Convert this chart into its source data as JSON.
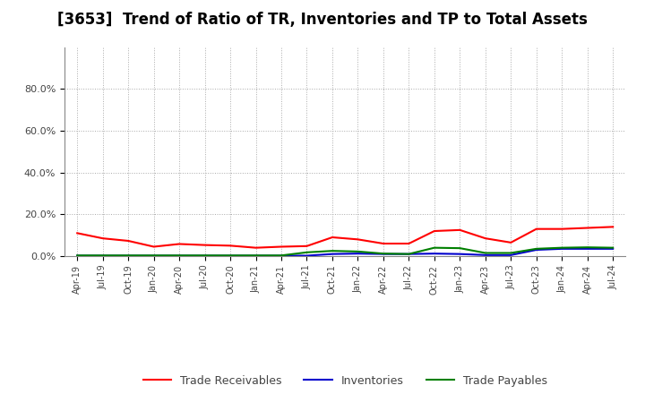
{
  "title": "[3653]  Trend of Ratio of TR, Inventories and TP to Total Assets",
  "title_fontsize": 12,
  "background_color": "#ffffff",
  "plot_bg_color": "#ffffff",
  "grid_color": "#aaaaaa",
  "dates": [
    "Apr-19",
    "Jul-19",
    "Oct-19",
    "Jan-20",
    "Apr-20",
    "Jul-20",
    "Oct-20",
    "Jan-21",
    "Apr-21",
    "Jul-21",
    "Oct-21",
    "Jan-22",
    "Apr-22",
    "Jul-22",
    "Oct-22",
    "Jan-23",
    "Apr-23",
    "Jul-23",
    "Oct-23",
    "Jan-24",
    "Apr-24",
    "Jul-24"
  ],
  "trade_receivables": [
    0.11,
    0.085,
    0.073,
    0.045,
    0.058,
    0.053,
    0.05,
    0.04,
    0.045,
    0.048,
    0.09,
    0.08,
    0.06,
    0.06,
    0.12,
    0.125,
    0.085,
    0.065,
    0.13,
    0.13,
    0.135,
    0.14
  ],
  "inventories": [
    0.002,
    0.002,
    0.002,
    0.002,
    0.002,
    0.002,
    0.002,
    0.002,
    0.002,
    0.002,
    0.01,
    0.012,
    0.01,
    0.01,
    0.012,
    0.01,
    0.005,
    0.005,
    0.03,
    0.035,
    0.035,
    0.035
  ],
  "trade_payables": [
    0.003,
    0.003,
    0.003,
    0.003,
    0.003,
    0.003,
    0.003,
    0.003,
    0.003,
    0.018,
    0.025,
    0.022,
    0.012,
    0.01,
    0.04,
    0.038,
    0.015,
    0.015,
    0.035,
    0.04,
    0.042,
    0.04
  ],
  "tr_color": "#ff0000",
  "inv_color": "#0000cd",
  "tp_color": "#008000",
  "line_width": 1.5,
  "legend_labels": [
    "Trade Receivables",
    "Inventories",
    "Trade Payables"
  ]
}
